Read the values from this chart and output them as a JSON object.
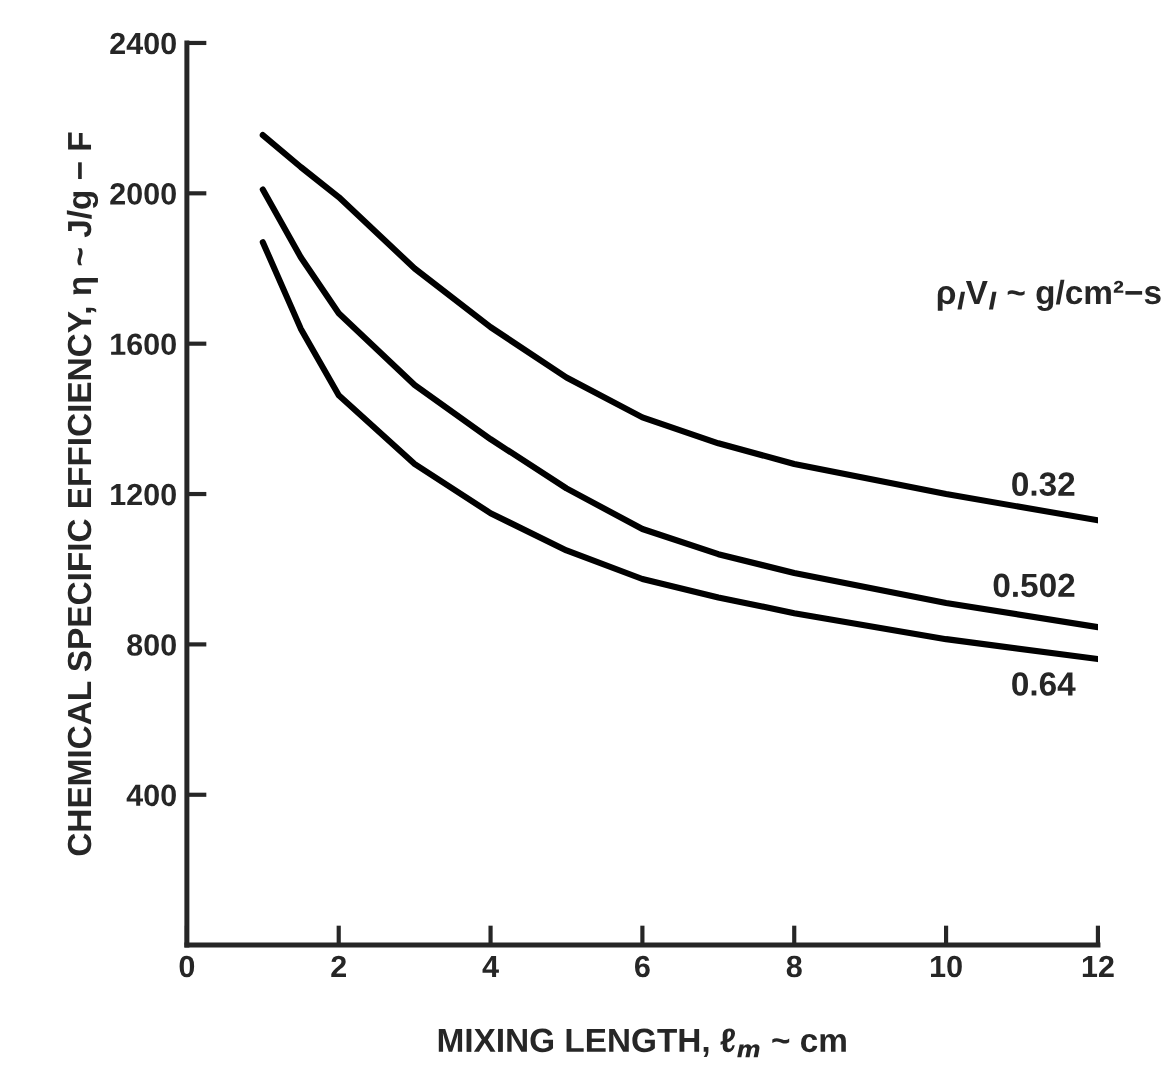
{
  "chart_data": {
    "type": "line",
    "xlabel": "MIXING LENGTH, ℓ$_{m}$ ~ cm",
    "ylabel": "CHEMICAL SPECIFIC EFFICIENCY, η ~ J/g − F",
    "legend_title": "ρ$_{l}$V$_{l}$ ~ g/cm²−s",
    "xlim": [
      0,
      12
    ],
    "xticks": [
      0,
      2,
      4,
      6,
      8,
      10,
      12
    ],
    "ylim": [
      0,
      2400
    ],
    "yticks": [
      400,
      800,
      1200,
      1600,
      2000,
      2400
    ],
    "grid": false,
    "legend": false,
    "marker": "none",
    "line_style": "solid",
    "x": [
      1,
      1.5,
      2,
      3,
      4,
      5,
      6,
      7,
      8,
      10,
      12
    ],
    "series": [
      {
        "name": "0.32",
        "color": "#000000",
        "values": [
          2155,
          2070,
          1990,
          1800,
          1644,
          1510,
          1404,
          1335,
          1280,
          1200,
          1130
        ]
      },
      {
        "name": "0.502",
        "color": "#000000",
        "values": [
          2010,
          1830,
          1681,
          1490,
          1346,
          1215,
          1107,
          1040,
          990,
          910,
          846
        ]
      },
      {
        "name": "0.64",
        "color": "#000000",
        "values": [
          1870,
          1640,
          1463,
          1280,
          1149,
          1050,
          974,
          925,
          883,
          814,
          761
        ]
      }
    ]
  }
}
